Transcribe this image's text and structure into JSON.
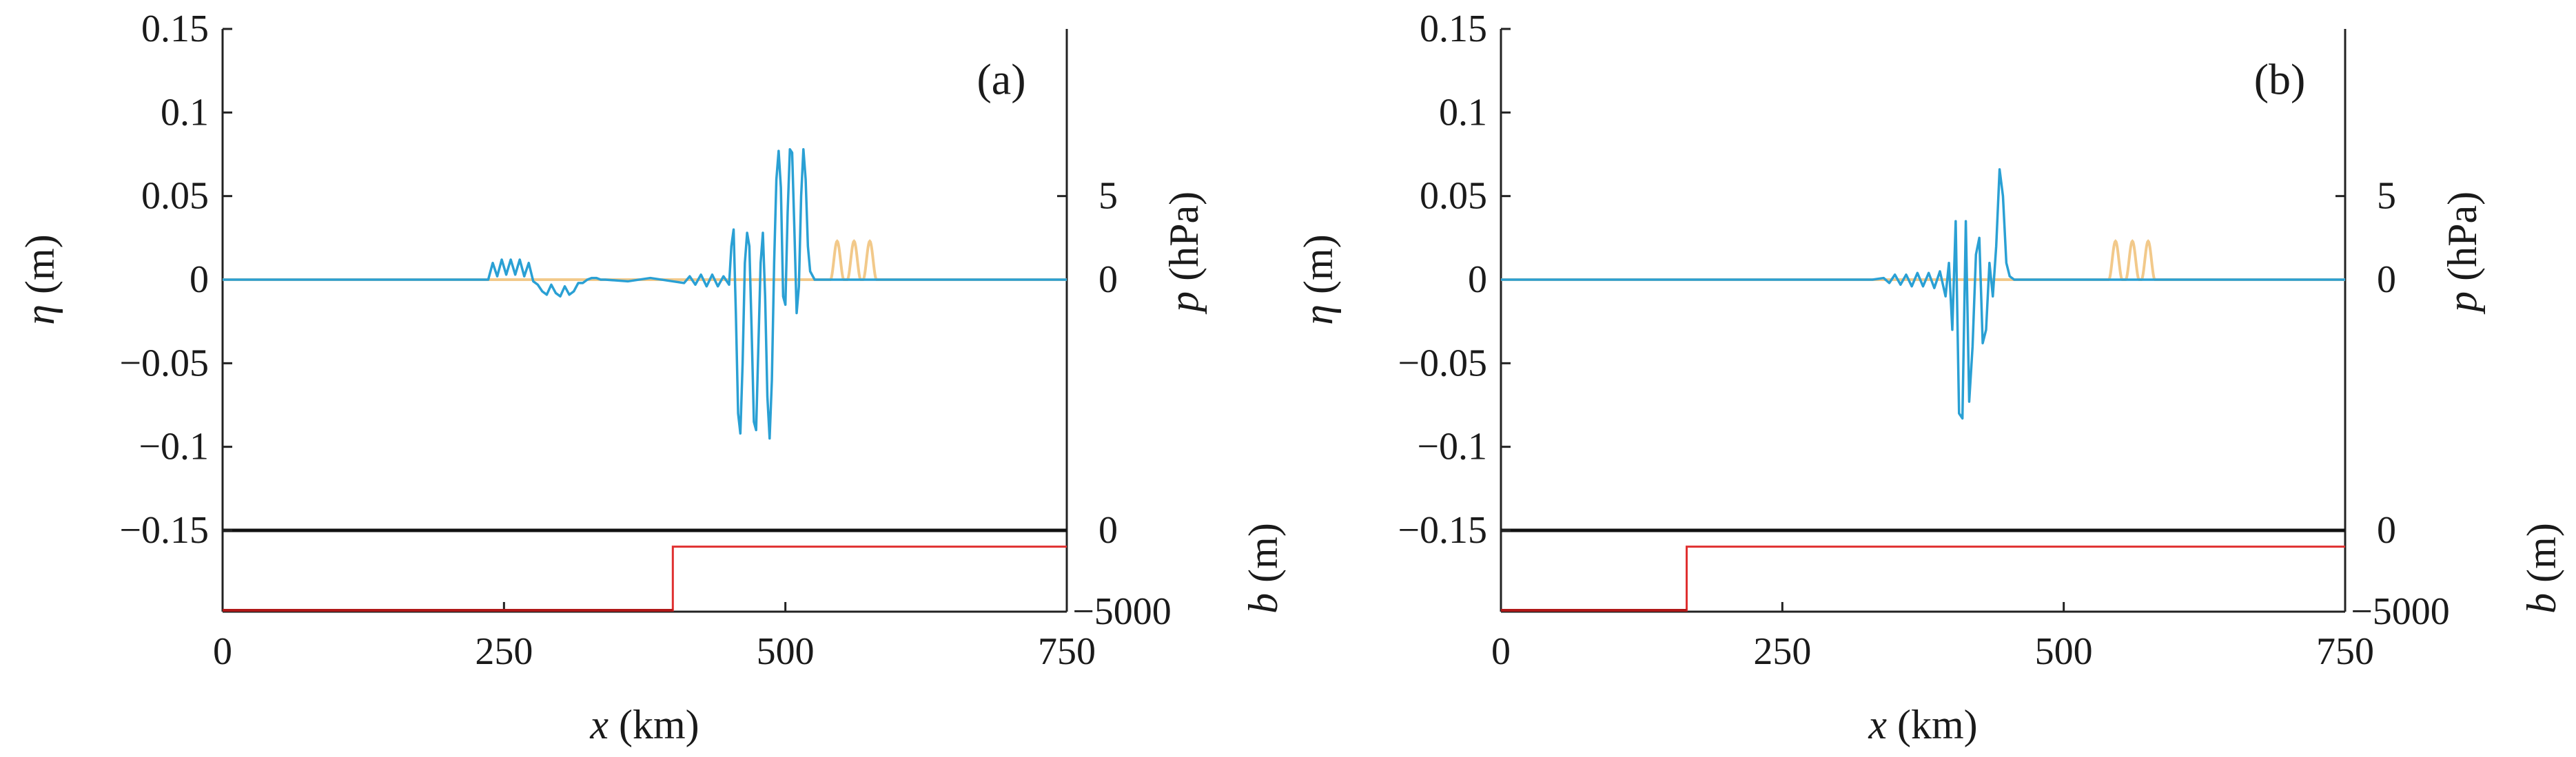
{
  "chart_data": [
    {
      "type": "line",
      "panel_label": "(a)",
      "xlabel": {
        "var": "x",
        "unit": " (km)"
      },
      "ylabel_left": {
        "var": "η",
        "unit": " (m)"
      },
      "ylabel_right_top": {
        "var": "p",
        "unit": " (hPa)"
      },
      "ylabel_right_bottom": {
        "var": "b",
        "unit": " (m)"
      },
      "xlim": [
        0,
        750
      ],
      "ylim_eta": [
        -0.15,
        0.15
      ],
      "x_ticks": [
        "0",
        "250",
        "500",
        "750"
      ],
      "eta_ticks": [
        "0.15",
        "0.1",
        "0.05",
        "0",
        "−0.05",
        "−0.1",
        "−0.15"
      ],
      "p_ticks": [
        "5",
        "0"
      ],
      "b_ticks": [
        "0",
        "−5000"
      ],
      "pressure_series": {
        "name": "p",
        "color": "#f2c98a",
        "pulses_center_km": [
          546,
          561,
          575
        ],
        "pulse_amplitude_hPa": 2.3,
        "pulse_halfwidth_km": 6
      },
      "eta_series": {
        "name": "η",
        "color": "#2aa0d4",
        "x": [
          0,
          236,
          240,
          244,
          248,
          252,
          256,
          260,
          264,
          268,
          272,
          276,
          280,
          284,
          288,
          292,
          296,
          300,
          304,
          308,
          312,
          316,
          320,
          324,
          328,
          332,
          336,
          340,
          360,
          380,
          400,
          410,
          415,
          420,
          425,
          430,
          435,
          440,
          445,
          450,
          452,
          454,
          456,
          458,
          460,
          462,
          464,
          466,
          468,
          470,
          472,
          474,
          476,
          478,
          480,
          482,
          484,
          486,
          488,
          490,
          492,
          494,
          496,
          498,
          500,
          502,
          504,
          506,
          508,
          510,
          512,
          514,
          516,
          518,
          520,
          522,
          526,
          530,
          534,
          538,
          542,
          546,
          550,
          554,
          558,
          562,
          566,
          570,
          574,
          578,
          582,
          750
        ],
        "y": [
          0,
          0,
          0.01,
          0.002,
          0.012,
          0.003,
          0.012,
          0.003,
          0.012,
          0.002,
          0.01,
          -0.001,
          -0.003,
          -0.007,
          -0.009,
          -0.003,
          -0.008,
          -0.01,
          -0.004,
          -0.009,
          -0.007,
          -0.002,
          -0.002,
          0,
          0.001,
          0.001,
          0,
          0,
          -0.001,
          0.001,
          -0.001,
          -0.002,
          0.002,
          -0.003,
          0.003,
          -0.004,
          0.003,
          -0.004,
          0.002,
          -0.003,
          0.02,
          0.03,
          -0.02,
          -0.08,
          -0.092,
          -0.05,
          0.01,
          0.028,
          0.02,
          -0.03,
          -0.085,
          -0.09,
          -0.04,
          0.01,
          0.028,
          -0.01,
          -0.07,
          -0.095,
          -0.06,
          0.01,
          0.06,
          0.077,
          0.055,
          -0.01,
          -0.015,
          0.04,
          0.078,
          0.076,
          0.03,
          -0.02,
          -0.004,
          0.05,
          0.078,
          0.06,
          0.02,
          0.005,
          0,
          0,
          0,
          0,
          0,
          0,
          0,
          0,
          0,
          0,
          0,
          0,
          0,
          0,
          0,
          0
        ]
      },
      "bathymetry": {
        "name": "b",
        "color": "#e03030",
        "step_km": 400,
        "depth_left_m": -5000,
        "depth_right_m": -1000
      },
      "baseline_b_zero": 0
    },
    {
      "type": "line",
      "panel_label": "(b)",
      "xlabel": {
        "var": "x",
        "unit": " (km)"
      },
      "ylabel_left": {
        "var": "η",
        "unit": " (m)"
      },
      "ylabel_right_top": {
        "var": "p",
        "unit": " (hPa)"
      },
      "ylabel_right_bottom": {
        "var": "b",
        "unit": " (m)"
      },
      "xlim": [
        0,
        750
      ],
      "ylim_eta": [
        -0.15,
        0.15
      ],
      "x_ticks": [
        "0",
        "250",
        "500",
        "750"
      ],
      "eta_ticks": [
        "0.15",
        "0.1",
        "0.05",
        "0",
        "−0.05",
        "−0.1",
        "−0.15"
      ],
      "p_ticks": [
        "5",
        "0"
      ],
      "b_ticks": [
        "0",
        "−5000"
      ],
      "pressure_series": {
        "name": "p",
        "color": "#f2c98a",
        "pulses_center_km": [
          546,
          561,
          575
        ],
        "pulse_amplitude_hPa": 2.3,
        "pulse_halfwidth_km": 6
      },
      "eta_series": {
        "name": "η",
        "color": "#2aa0d4",
        "x": [
          0,
          330,
          340,
          345,
          350,
          355,
          360,
          365,
          370,
          375,
          380,
          385,
          390,
          395,
          398,
          401,
          404,
          407,
          410,
          413,
          416,
          419,
          422,
          425,
          428,
          431,
          434,
          437,
          440,
          443,
          446,
          449,
          452,
          456,
          460,
          750
        ],
        "y": [
          0,
          0,
          0.001,
          -0.002,
          0.003,
          -0.003,
          0.003,
          -0.004,
          0.004,
          -0.004,
          0.004,
          -0.005,
          0.005,
          -0.01,
          0.01,
          -0.03,
          0.035,
          -0.08,
          -0.083,
          0.035,
          -0.073,
          -0.04,
          0.015,
          0.025,
          -0.038,
          -0.03,
          0.01,
          -0.01,
          0.02,
          0.066,
          0.05,
          0.01,
          0.002,
          0,
          0,
          0
        ]
      },
      "bathymetry": {
        "name": "b",
        "color": "#e03030",
        "step_km": 165,
        "depth_left_m": -5000,
        "depth_right_m": -1000
      },
      "baseline_b_zero": 0
    }
  ]
}
